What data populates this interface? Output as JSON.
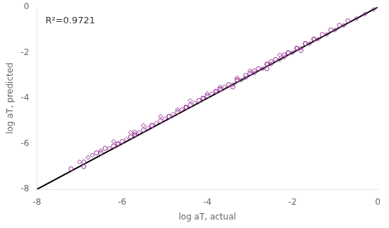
{
  "chart_data": {
    "type": "scatter",
    "xlabel": "log aT, actual",
    "ylabel": "log aT, predicted",
    "xlim": [
      -8,
      0
    ],
    "ylim": [
      -8,
      0
    ],
    "xticks": [
      -8,
      -6,
      -4,
      -2,
      0
    ],
    "yticks": [
      -8,
      -6,
      -4,
      -2,
      0
    ],
    "grid": false,
    "series": [
      {
        "type": "scatter",
        "marker": "diamond",
        "color": "#993399",
        "x": [
          -7.0,
          -6.8,
          -6.5,
          -6.3,
          -6.1,
          -5.9,
          -5.7,
          -5.6,
          -5.4,
          -5.2,
          -5.0,
          -4.8,
          -4.6,
          -4.5,
          -4.3,
          -4.1,
          -3.9,
          -3.8,
          -3.6,
          -3.4,
          -3.2,
          -3.1,
          -2.9,
          -2.7,
          -2.5,
          -2.3,
          -2.2,
          -2.0,
          -1.8,
          -1.6,
          -1.4,
          -1.2,
          -1.0,
          -0.8,
          -0.5,
          -0.3,
          -0.1,
          -6.7,
          -6.2,
          -5.8,
          -5.5,
          -5.1,
          -4.7,
          -4.4,
          -4.0,
          -3.7,
          -3.3,
          -3.0,
          -2.6,
          -2.3,
          -1.9,
          -1.5
        ],
        "values": [
          -6.8,
          -6.6,
          -6.3,
          -6.2,
          -6.0,
          -5.8,
          -5.6,
          -5.5,
          -5.3,
          -5.1,
          -4.9,
          -4.7,
          -4.5,
          -4.4,
          -4.2,
          -4.0,
          -3.8,
          -3.7,
          -3.5,
          -3.4,
          -3.2,
          -3.1,
          -2.9,
          -2.7,
          -2.5,
          -2.3,
          -2.2,
          -2.0,
          -1.8,
          -1.6,
          -1.4,
          -1.2,
          -1.0,
          -0.8,
          -0.5,
          -0.3,
          -0.1,
          -6.5,
          -5.9,
          -5.5,
          -5.2,
          -4.8,
          -4.5,
          -4.1,
          -3.8,
          -3.5,
          -3.1,
          -2.8,
          -2.5,
          -2.1,
          -1.8,
          -1.4
        ]
      },
      {
        "type": "scatter",
        "marker": "circle",
        "color": "#993399",
        "x": [
          -6.9,
          -6.6,
          -6.4,
          -6.2,
          -6.0,
          -5.8,
          -5.7,
          -5.5,
          -5.3,
          -5.1,
          -4.9,
          -4.7,
          -4.5,
          -4.4,
          -4.2,
          -4.0,
          -3.8,
          -3.7,
          -3.5,
          -3.3,
          -3.1,
          -3.0,
          -2.8,
          -2.6,
          -2.4,
          -2.2,
          -2.1,
          -1.9,
          -1.7,
          -1.5,
          -1.3,
          -1.1,
          -0.9,
          -0.7,
          -7.2,
          -6.9,
          -6.5,
          -6.1,
          -5.7,
          -5.3,
          -4.9,
          -4.5,
          -4.1,
          -3.7,
          -3.3,
          -2.9,
          -2.5,
          -2.1,
          -1.7,
          -3.4,
          -2.6,
          -1.8
        ],
        "values": [
          -7.0,
          -6.4,
          -6.2,
          -6.1,
          -5.9,
          -5.7,
          -5.5,
          -5.4,
          -5.2,
          -5.0,
          -4.8,
          -4.6,
          -4.4,
          -4.3,
          -4.1,
          -3.9,
          -3.7,
          -3.6,
          -3.4,
          -3.2,
          -3.0,
          -2.9,
          -2.7,
          -2.5,
          -2.3,
          -2.1,
          -2.0,
          -1.8,
          -1.6,
          -1.4,
          -1.2,
          -1.0,
          -0.8,
          -0.6,
          -7.1,
          -6.8,
          -6.4,
          -6.0,
          -5.6,
          -5.2,
          -4.8,
          -4.4,
          -4.0,
          -3.6,
          -3.2,
          -2.8,
          -2.4,
          -2.0,
          -1.6,
          -3.5,
          -2.7,
          -1.9
        ]
      },
      {
        "type": "line",
        "line_style": "solid",
        "color": "#000000",
        "x": [
          -8,
          0
        ],
        "values": [
          -8,
          0
        ]
      }
    ],
    "annotations": [
      {
        "text": "R²=0.9721",
        "x": -7.8,
        "y": -0.4
      }
    ]
  }
}
